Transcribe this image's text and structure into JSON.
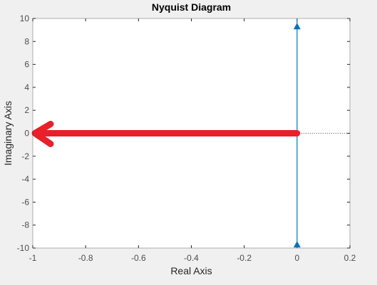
{
  "chart_data": {
    "type": "line",
    "title": "Nyquist Diagram",
    "xlabel": "Real Axis",
    "ylabel": "Imaginary Axis",
    "xlim": [
      -1,
      0.2
    ],
    "ylim": [
      -10,
      10
    ],
    "xticks": [
      "-1",
      "-0.8",
      "-0.6",
      "-0.4",
      "-0.2",
      "0",
      "0.2"
    ],
    "xtick_values": [
      -1,
      -0.8,
      -0.6,
      -0.4,
      -0.2,
      0,
      0.2
    ],
    "yticks": [
      "10",
      "8",
      "6",
      "4",
      "2",
      "0",
      "-2",
      "-4",
      "-6",
      "-8",
      "-10"
    ],
    "ytick_values": [
      10,
      8,
      6,
      4,
      2,
      0,
      -2,
      -4,
      -6,
      -8,
      -10
    ],
    "grid": false,
    "series": [
      {
        "x": [
          0,
          0
        ],
        "y": [
          -10,
          10
        ],
        "color": "#0072BD",
        "arrow_markers": [
          {
            "x": 0,
            "y": 9.3,
            "direction": "up"
          },
          {
            "x": 0,
            "y": -9.7,
            "direction": "up"
          }
        ]
      }
    ],
    "reference_line": {
      "y": 0,
      "x": [
        0,
        0.2
      ],
      "style": "dotted",
      "color": "#000000"
    },
    "annotation_arrow": {
      "from": {
        "x": 0,
        "y": 0
      },
      "to": {
        "x": -1,
        "y": 0
      },
      "color": "#e8202a",
      "style": "hand-drawn"
    },
    "colors": {
      "figure_background": "#f0f0f0",
      "axes_background": "#ffffff",
      "axes_edge": "#262626"
    }
  }
}
